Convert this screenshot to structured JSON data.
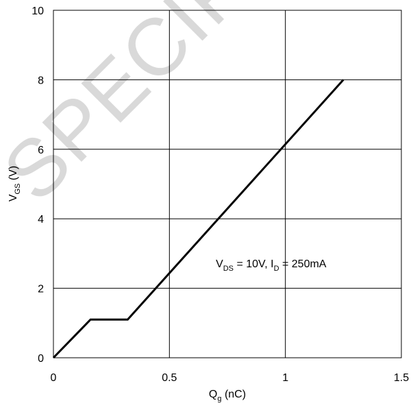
{
  "chart_data": {
    "type": "line",
    "xlabel": {
      "main": "Q",
      "sub": "g",
      "rest": " (nC)"
    },
    "ylabel": {
      "main": "V",
      "sub": "GS",
      "rest": " (V)"
    },
    "xlim": [
      0,
      1.5
    ],
    "ylim": [
      0,
      10
    ],
    "x_ticks": [
      0,
      0.5,
      1,
      1.5
    ],
    "y_ticks": [
      0,
      2,
      4,
      6,
      8,
      10
    ],
    "x_tick_labels": [
      "0",
      "0.5",
      "1",
      "1.5"
    ],
    "y_tick_labels": [
      "0",
      "2",
      "4",
      "6",
      "8",
      "10"
    ],
    "grid": true,
    "series": [
      {
        "color": "#000000",
        "x": [
          0,
          0.16,
          0.32,
          1.25
        ],
        "y": [
          0,
          1.1,
          1.1,
          8.0
        ]
      }
    ],
    "annotation": {
      "parts": [
        {
          "text": "V",
          "sub": false
        },
        {
          "text": "DS",
          "sub": true
        },
        {
          "text": " = 10V, I",
          "sub": false
        },
        {
          "text": "D",
          "sub": true
        },
        {
          "text": " = 250mA",
          "sub": false
        }
      ],
      "x": 0.7,
      "y": 2.6
    }
  },
  "watermark": "SPECIFIC"
}
